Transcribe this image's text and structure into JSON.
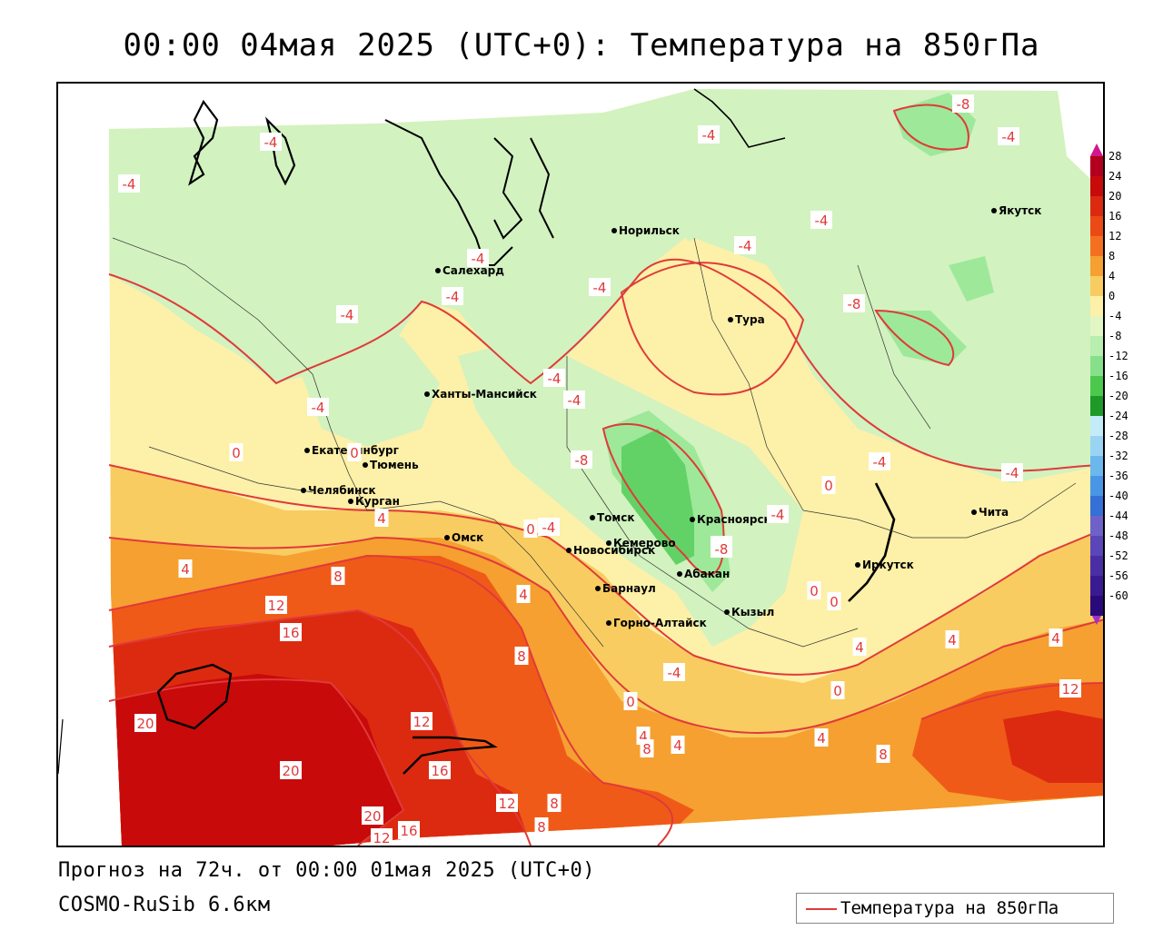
{
  "title": "00:00 04мая 2025 (UTC+0): Температура на 850гПа",
  "footer": {
    "forecast": "Прогноз на 72ч. от 00:00 01мая 2025 (UTC+0)",
    "model": "COSMO-RuSib 6.6км"
  },
  "legend": {
    "label": "Температура на 850гПа",
    "line_color": "#e03a3a"
  },
  "colors": {
    "isoline": "#e03a3a",
    "hot3": "#c80a0a",
    "hot2": "#dc2a10",
    "hot1": "#f05a18",
    "warm2": "#f5a030",
    "warm1": "#f8cc60",
    "mild": "#fdf0a8",
    "cool1": "#d2f2c0",
    "cool2": "#9ee89a",
    "cool3": "#62d266"
  },
  "color_scale": {
    "labels": [
      "28",
      "24",
      "20",
      "16",
      "12",
      "8",
      "4",
      "0",
      "-4",
      "-8",
      "-12",
      "-16",
      "-20",
      "-24",
      "-28",
      "-32",
      "-36",
      "-40",
      "-44",
      "-48",
      "-52",
      "-56",
      "-60"
    ],
    "colors": [
      "#b4001e",
      "#c80a0a",
      "#dc2a10",
      "#ec4a14",
      "#f47020",
      "#f5a030",
      "#f8cc60",
      "#fdf0a8",
      "#e2f6c4",
      "#b8eeae",
      "#86e08a",
      "#4cc84c",
      "#1e9a28",
      "#c4ecf8",
      "#9ad4f4",
      "#6ab8ee",
      "#4a96e6",
      "#3470d6",
      "#6e62c8",
      "#5a46b8",
      "#4a2ea4",
      "#3a1a90",
      "#2a0a7a"
    ]
  },
  "cities": [
    {
      "name": "Норильск"
    },
    {
      "name": "Якутск"
    },
    {
      "name": "Салехард"
    },
    {
      "name": "Тура"
    },
    {
      "name": "Ханты-Мансийск"
    },
    {
      "name": "Екатеринбург"
    },
    {
      "name": "Тюмень"
    },
    {
      "name": "Челябинск"
    },
    {
      "name": "Курган"
    },
    {
      "name": "Омск"
    },
    {
      "name": "Новосибирск"
    },
    {
      "name": "Томск"
    },
    {
      "name": "Кемерово"
    },
    {
      "name": "Красноярск"
    },
    {
      "name": "Абакан"
    },
    {
      "name": "Барнаул"
    },
    {
      "name": "Горно-Алтайск"
    },
    {
      "name": "Кызыл"
    },
    {
      "name": "Иркутск"
    },
    {
      "name": "Чита"
    }
  ],
  "isotherm_labels": [
    "-8",
    "-4",
    "-4",
    "-4",
    "-4",
    "-4",
    "-4",
    "-8",
    "-4",
    "-4",
    "-4",
    "-4",
    "-4",
    "-4",
    "-8",
    "-4",
    "-8",
    "-4",
    "-4",
    "0",
    "0",
    "0",
    "4",
    "0",
    "-4",
    "4",
    "8",
    "12",
    "16",
    "4",
    "8",
    "20",
    "12",
    "16",
    "20",
    "12",
    "8",
    "8",
    "16",
    "20",
    "12",
    "4",
    "4",
    "8",
    "4",
    "0",
    "4",
    "0",
    "4",
    "8",
    "12",
    "4",
    "0",
    "0",
    "-4",
    "-8",
    "-4"
  ]
}
